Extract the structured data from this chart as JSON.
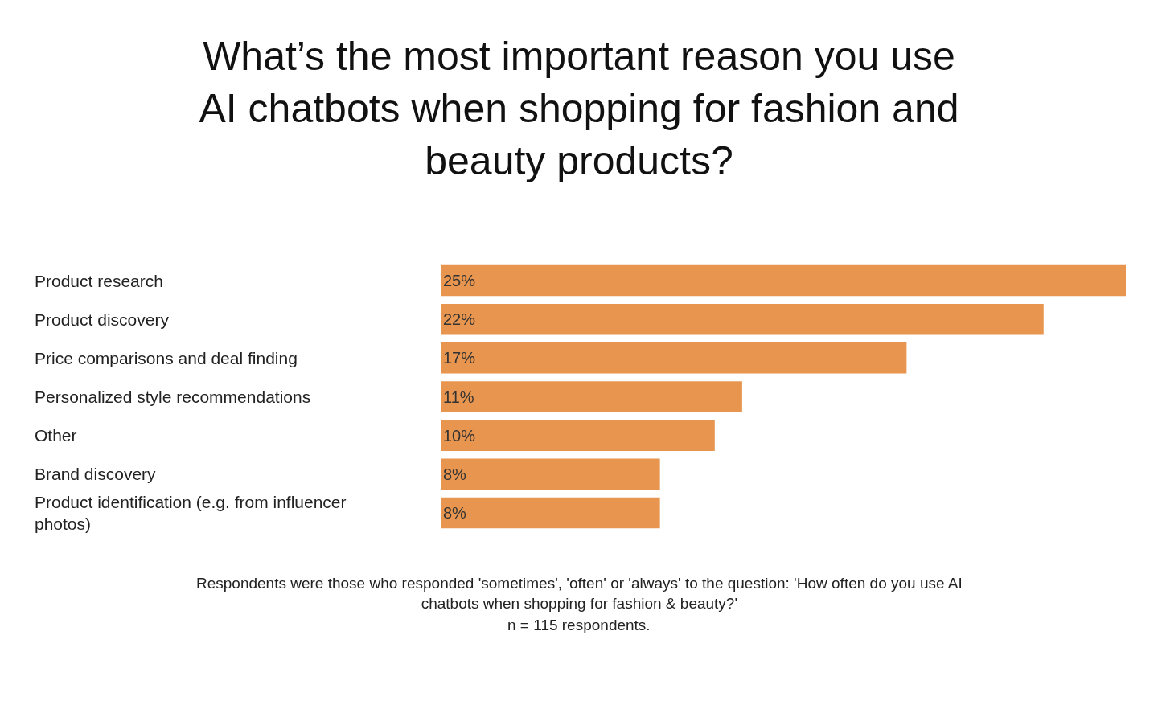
{
  "chart_data": {
    "type": "bar",
    "orientation": "horizontal",
    "title": "What’s the most important reason you use AI chatbots when shopping for fashion and beauty products?",
    "categories": [
      "Product research",
      "Product discovery",
      "Price comparisons and deal finding",
      "Personalized style recommendations",
      "Other",
      "Brand discovery",
      "Product identification (e.g. from influencer photos)"
    ],
    "values": [
      25,
      22,
      17,
      11,
      10,
      8,
      8
    ],
    "value_labels": [
      "25%",
      "22%",
      "17%",
      "11%",
      "10%",
      "8%",
      "8%"
    ],
    "color": "#e8964f",
    "annotations": [
      "Respondents were those who responded 'sometimes', 'often' or 'always' to the question: 'How often do you use AI chatbots when shopping for fashion & beauty?'",
      "n = 115 respondents."
    ]
  }
}
